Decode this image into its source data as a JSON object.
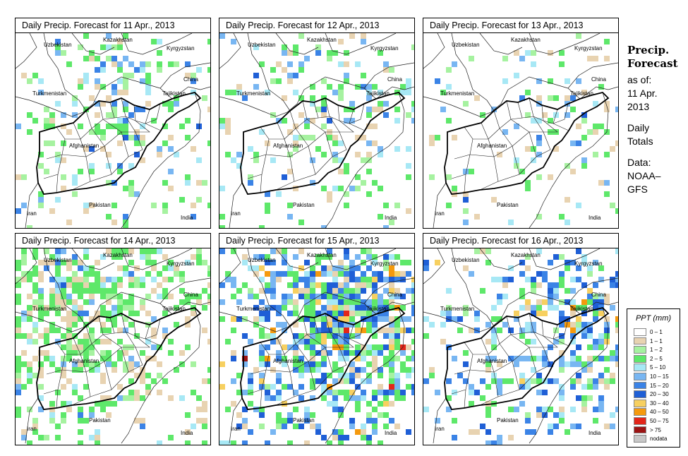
{
  "panels": [
    {
      "title": "Daily Precip. Forecast for  11 Apr., 2013",
      "date": "11 Apr., 2013"
    },
    {
      "title": "Daily Precip. Forecast for  12 Apr., 2013",
      "date": "12 Apr., 2013"
    },
    {
      "title": "Daily Precip. Forecast for  13 Apr., 2013",
      "date": "13 Apr., 2013"
    },
    {
      "title": "Daily Precip. Forecast for  14 Apr., 2013",
      "date": "14 Apr., 2013"
    },
    {
      "title": "Daily Precip. Forecast for  15 Apr., 2013",
      "date": "15 Apr., 2013"
    },
    {
      "title": "Daily Precip. Forecast for  16 Apr., 2013",
      "date": "16 Apr., 2013"
    }
  ],
  "map_labels": {
    "uzbekistan": "Uzbekistan",
    "kazakhstan": "Kazakhstan",
    "kyrgyzstan": "Kyrgyzstan",
    "china": "China",
    "turkmenistan": "Turkmenistan",
    "tajikistan": "Tajikistan",
    "afghanistan": "Afghanistan",
    "pakistan": "Pakistan",
    "iran": "Iran",
    "india": "India"
  },
  "sidebar": {
    "title_line1": "Precip.",
    "title_line2": "Forecast",
    "asof_line1": "as of:",
    "asof_line2": "11 Apr.",
    "asof_line3": "2013",
    "totals_line1": "Daily",
    "totals_line2": "Totals",
    "data_line1": "Data:",
    "data_line2": "NOAA–",
    "data_line3": "GFS"
  },
  "legend": {
    "title": "PPT (mm)",
    "entries": [
      {
        "label": "0 – 1",
        "color": "#ffffff"
      },
      {
        "label": "1 – 1",
        "color": "#e8d3b1"
      },
      {
        "label": "1 – 2",
        "color": "#a6f2a0"
      },
      {
        "label": "2 – 5",
        "color": "#5ee86a"
      },
      {
        "label": "5 – 10",
        "color": "#a7e8f5"
      },
      {
        "label": "10 – 15",
        "color": "#78b6f2"
      },
      {
        "label": "15 – 20",
        "color": "#3b83e6"
      },
      {
        "label": "20 – 30",
        "color": "#1f5fd6"
      },
      {
        "label": "30 – 40",
        "color": "#f7d060"
      },
      {
        "label": "40 – 50",
        "color": "#f59a0e"
      },
      {
        "label": "50 – 75",
        "color": "#e3261a"
      },
      {
        "label": "> 75",
        "color": "#9c1414"
      },
      {
        "label": "nodata",
        "color": "#c8c8c8"
      }
    ]
  }
}
